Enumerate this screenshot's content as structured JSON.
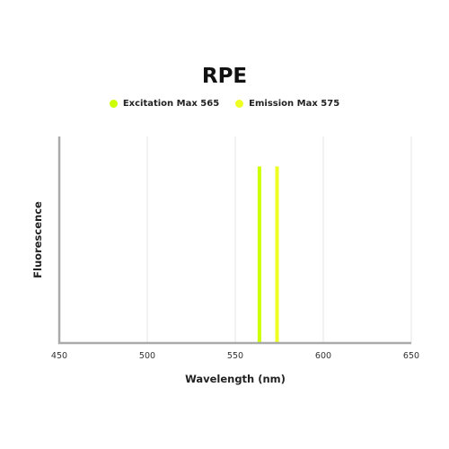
{
  "chart_data": {
    "type": "line",
    "title": "RPE",
    "xlabel": "Wavelength (nm)",
    "ylabel": "Fluorescence",
    "xlim": [
      450,
      650
    ],
    "xticks": [
      "450",
      "500",
      "550",
      "600",
      "650"
    ],
    "grid": true,
    "legend_position": "top",
    "series": [
      {
        "name": "Excitation Max 565",
        "x": 565,
        "y": 1.0,
        "color": "#ccff00"
      },
      {
        "name": "Emission Max 575",
        "x": 575,
        "y": 1.0,
        "color": "#eeff22"
      }
    ],
    "ylim": [
      0,
      1.2
    ]
  }
}
